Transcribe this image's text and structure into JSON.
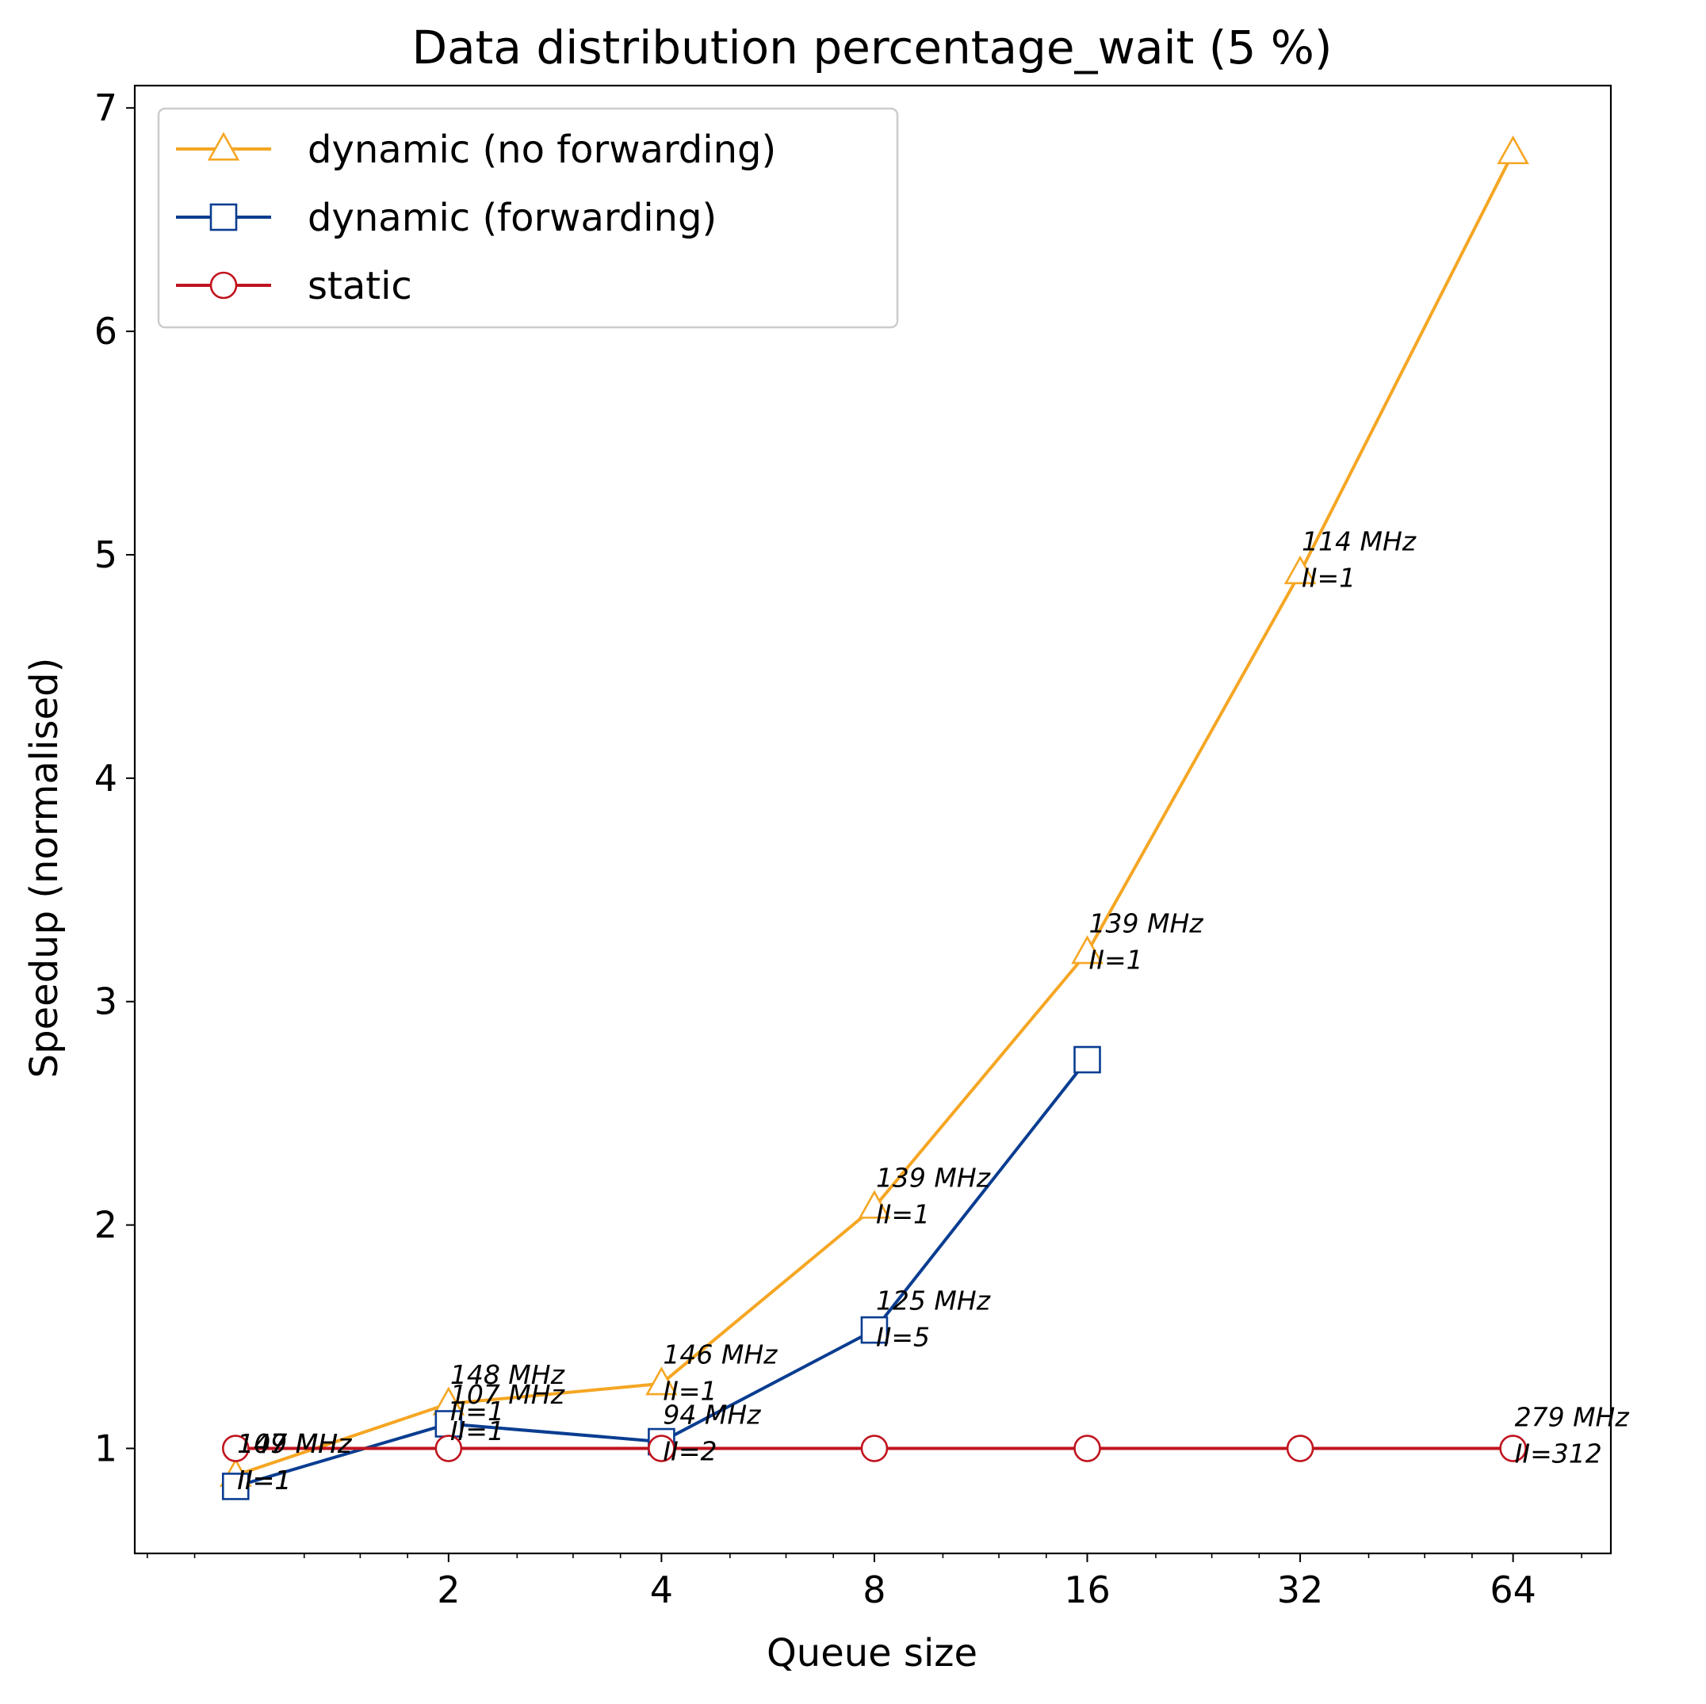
{
  "chart_data": {
    "type": "line",
    "title": "Data distribution percentage_wait (5 %)",
    "xlabel": "Queue size",
    "ylabel": "Speedup (normalised)",
    "x_scale": "log2",
    "xlim": [
      0.72,
      88
    ],
    "ylim": [
      0.53,
      7.1
    ],
    "x_ticks": [
      2,
      4,
      8,
      16,
      32,
      64
    ],
    "y_ticks": [
      1,
      2,
      3,
      4,
      5,
      6,
      7
    ],
    "legend_position": "top-left",
    "grid": false,
    "series": [
      {
        "name": "dynamic (no forwarding)",
        "color": "#f5a623",
        "marker": "triangle",
        "x": [
          1,
          2,
          4,
          8,
          16,
          32,
          64
        ],
        "y": [
          0.88,
          1.2,
          1.29,
          2.08,
          3.22,
          4.92,
          6.8
        ]
      },
      {
        "name": "dynamic (forwarding)",
        "color": "#0a3d91",
        "marker": "square",
        "x": [
          1,
          2,
          4,
          8,
          16
        ],
        "y": [
          0.83,
          1.11,
          1.03,
          1.53,
          2.74
        ]
      },
      {
        "name": "static",
        "color": "#c0141f",
        "marker": "circle",
        "x": [
          1,
          2,
          4,
          8,
          16,
          32,
          64
        ],
        "y": [
          1.0,
          1.0,
          1.0,
          1.0,
          1.0,
          1.0,
          1.0
        ]
      }
    ],
    "annotations": [
      {
        "x": 1,
        "y": 0.98,
        "lines": [
          "147 MHz",
          "II=1"
        ]
      },
      {
        "x": 1,
        "y": 0.98,
        "lines": [
          "149 MHz",
          "II=1"
        ]
      },
      {
        "x": 1,
        "y": 0.98,
        "lines": [
          "107 MHz",
          "II=1"
        ]
      },
      {
        "x": 2,
        "y": 1.29,
        "lines": [
          "148 MHz",
          "II=1"
        ]
      },
      {
        "x": 2,
        "y": 1.2,
        "lines": [
          "107 MHz",
          "II=1"
        ]
      },
      {
        "x": 4,
        "y": 1.38,
        "lines": [
          "146 MHz",
          "II=1"
        ]
      },
      {
        "x": 4,
        "y": 1.11,
        "lines": [
          "94 MHz",
          "II=2"
        ]
      },
      {
        "x": 8,
        "y": 2.17,
        "lines": [
          "139 MHz",
          "II=1"
        ]
      },
      {
        "x": 8,
        "y": 1.62,
        "lines": [
          "125 MHz",
          "II=5"
        ]
      },
      {
        "x": 16,
        "y": 3.31,
        "lines": [
          "139 MHz",
          "II=1"
        ]
      },
      {
        "x": 32,
        "y": 5.02,
        "lines": [
          "114 MHz",
          "II=1"
        ]
      },
      {
        "x": 64,
        "y": 1.1,
        "lines": [
          "279 MHz",
          "II=312"
        ]
      }
    ]
  }
}
